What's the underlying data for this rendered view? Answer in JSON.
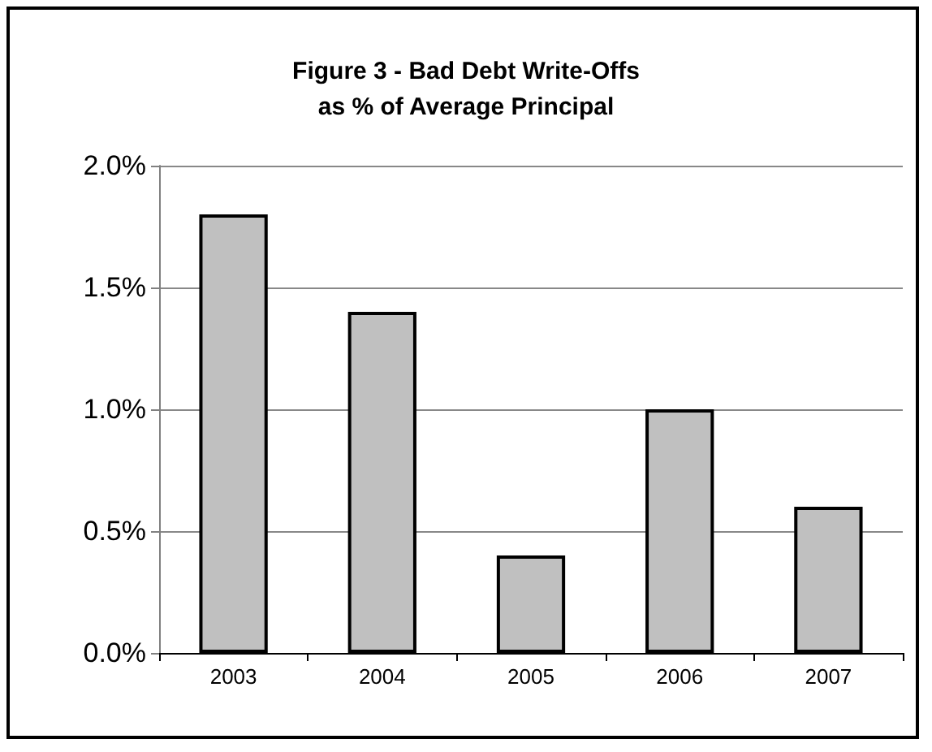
{
  "chart_data": {
    "type": "bar",
    "title": "Figure 3 - Bad Debt Write-Offs\nas % of Average Principal",
    "categories": [
      "2003",
      "2004",
      "2005",
      "2006",
      "2007"
    ],
    "values": [
      1.8,
      1.4,
      0.4,
      1.0,
      0.6
    ],
    "color": "#c0c0c0",
    "ylim": [
      0,
      2
    ],
    "yticks": [
      {
        "value": 0,
        "label": "0.0%"
      },
      {
        "value": 0.5,
        "label": "0.5%"
      },
      {
        "value": 1,
        "label": "1.0%"
      },
      {
        "value": 1.5,
        "label": "1.5%"
      },
      {
        "value": 2,
        "label": "2.0%"
      }
    ],
    "grid": "y"
  }
}
